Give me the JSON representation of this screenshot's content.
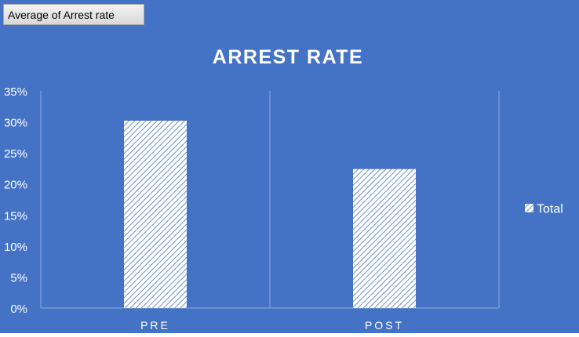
{
  "field_button": {
    "label": "Average of Arrest rate"
  },
  "chart_data": {
    "type": "bar",
    "title": "ARREST RATE",
    "categories": [
      "PRE",
      "POST"
    ],
    "series": [
      {
        "name": "Total",
        "values": [
          0.302,
          0.224
        ]
      }
    ],
    "xlabel": "",
    "ylabel": "",
    "ylim": [
      0,
      0.35
    ],
    "yticks": [
      0,
      0.05,
      0.1,
      0.15,
      0.2,
      0.25,
      0.3,
      0.35
    ],
    "ytick_labels": [
      "0%",
      "5%",
      "10%",
      "15%",
      "20%",
      "25%",
      "30%",
      "35%"
    ],
    "legend_position": "right",
    "grid": "vertical category separators",
    "bar_fill": "diagonal-hatch",
    "colors": {
      "background": "#4472c4",
      "bar_hatch": "#ffffff",
      "gridline": "#8fa9dc",
      "text": "#ffffff"
    }
  }
}
